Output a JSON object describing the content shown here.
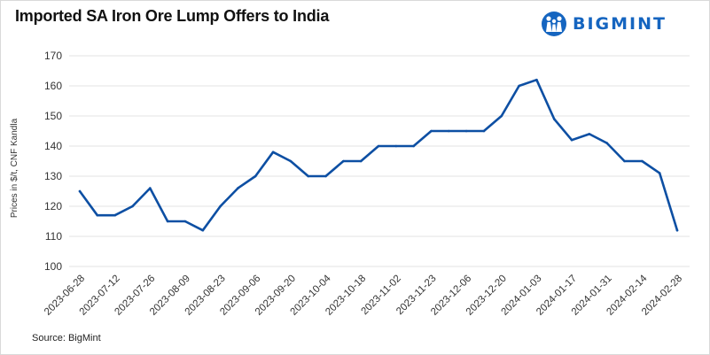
{
  "title": "Imported SA Iron Ore Lump Offers to India",
  "logo": {
    "text": "BIGMINT",
    "color": "#1565c0",
    "icon": "bigmint-logo-icon"
  },
  "source": "Source: BigMint",
  "colors": {
    "line": "#0d4fa3",
    "grid": "#e3e3e3"
  },
  "chart_data": {
    "type": "line",
    "title": "Imported SA Iron Ore Lump Offers to India",
    "xlabel": "",
    "ylabel": "Prices in $/t, CNF Kandla",
    "ylim": [
      100,
      170
    ],
    "yticks": [
      100,
      110,
      120,
      130,
      140,
      150,
      160,
      170
    ],
    "grid": true,
    "legend": "none",
    "x": [
      "2023-06-28",
      "2023-07-05",
      "2023-07-12",
      "2023-07-19",
      "2023-07-26",
      "2023-08-02",
      "2023-08-09",
      "2023-08-16",
      "2023-08-23",
      "2023-08-30",
      "2023-09-06",
      "2023-09-13",
      "2023-09-20",
      "2023-09-27",
      "2023-10-04",
      "2023-10-11",
      "2023-10-18",
      "2023-10-25",
      "2023-11-02",
      "2023-11-09",
      "2023-11-23",
      "2023-11-30",
      "2023-12-06",
      "2023-12-13",
      "2023-12-20",
      "2023-12-27",
      "2024-01-03",
      "2024-01-10",
      "2024-01-17",
      "2024-01-24",
      "2024-01-31",
      "2024-02-07",
      "2024-02-14",
      "2024-02-21",
      "2024-02-28"
    ],
    "values": [
      125,
      117,
      117,
      120,
      126,
      115,
      115,
      112,
      120,
      126,
      130,
      138,
      135,
      130,
      130,
      135,
      135,
      140,
      140,
      140,
      145,
      145,
      145,
      145,
      150,
      160,
      162,
      149,
      142,
      144,
      141,
      135,
      135,
      131,
      112
    ],
    "tick_labels": [
      "2023-06-28",
      "2023-07-12",
      "2023-07-26",
      "2023-08-09",
      "2023-08-23",
      "2023-09-06",
      "2023-09-20",
      "2023-10-04",
      "2023-10-18",
      "2023-11-02",
      "2023-11-23",
      "2023-12-06",
      "2023-12-20",
      "2024-01-03",
      "2024-01-17",
      "2024-01-31",
      "2024-02-14",
      "2024-02-28"
    ],
    "tick_indices": [
      0,
      2,
      4,
      6,
      8,
      10,
      12,
      14,
      16,
      18,
      20,
      22,
      24,
      26,
      28,
      30,
      32,
      34
    ]
  }
}
